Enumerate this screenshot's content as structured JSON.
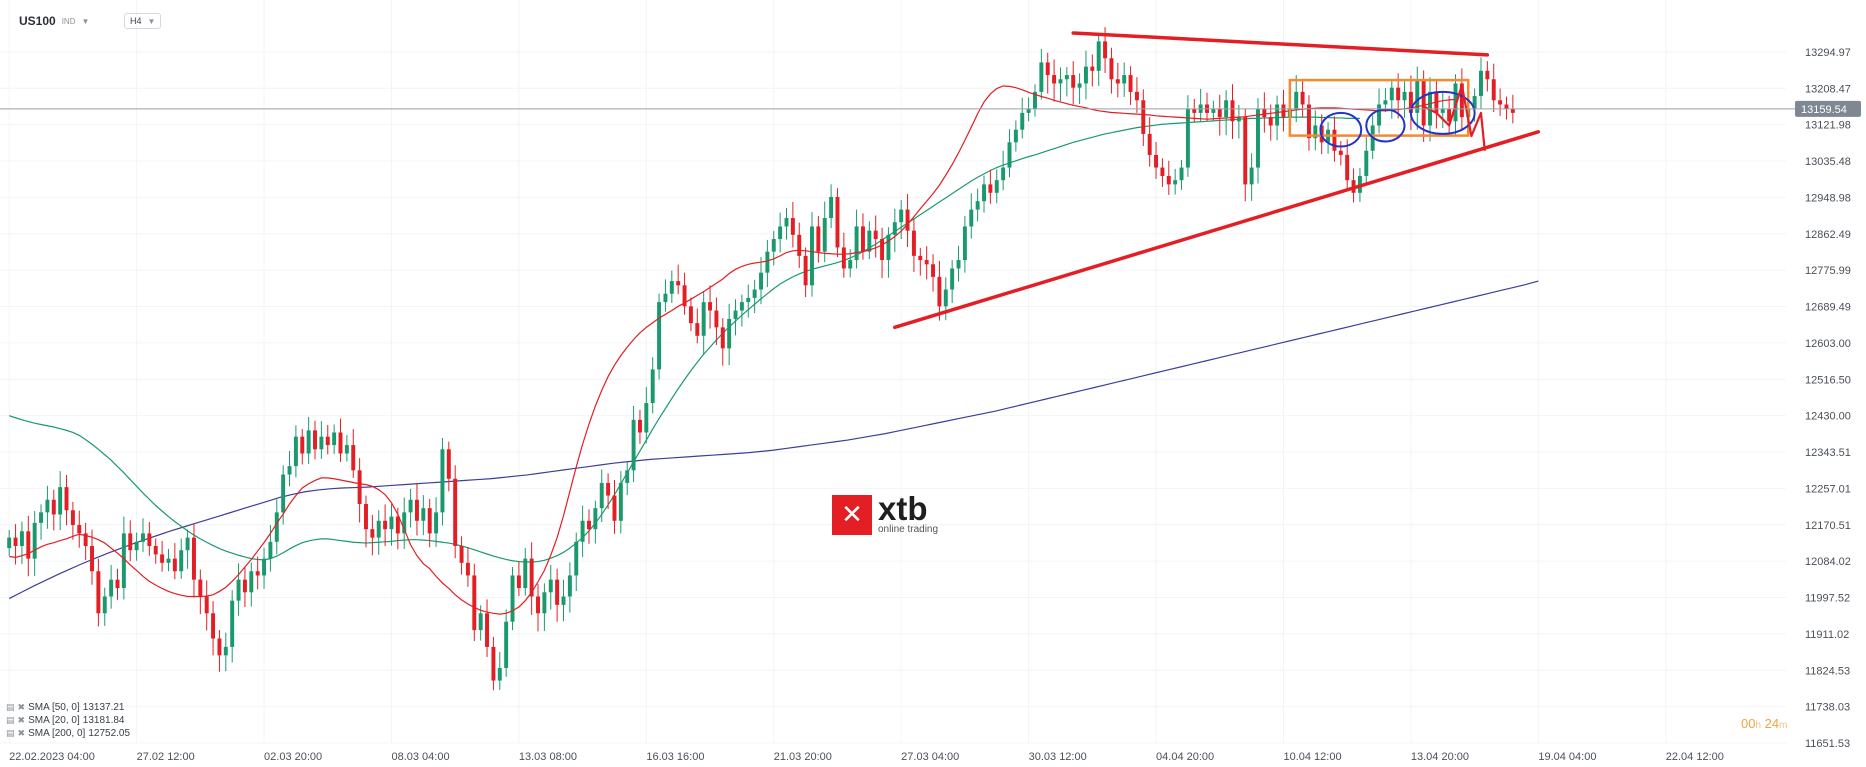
{
  "header": {
    "symbol": "US100",
    "asset_class": "IND",
    "timeframe": "H4"
  },
  "logo": {
    "mark": "✕",
    "name": "xtb",
    "tagline": "online trading"
  },
  "legend": [
    {
      "label": "SMA [50, 0]",
      "value": "13137.21",
      "color": "#1a9a6c"
    },
    {
      "label": "SMA [20, 0]",
      "value": "13181.84",
      "color": "#e31e24"
    },
    {
      "label": "SMA [200, 0]",
      "value": "12752.05",
      "color": "#3b3f9a"
    }
  ],
  "timer": {
    "hours": "00",
    "h": "h",
    "minutes": "24",
    "m": "m"
  },
  "colors": {
    "up": "#1a9a6c",
    "down": "#e31e24",
    "sma50": "#1a9a6c",
    "sma20": "#e31e24",
    "sma200": "#3b3f9a",
    "trendline": "#e31e24",
    "box": "#f28a30",
    "circles": "#2233cc",
    "price_badge": "#7f8792"
  },
  "chart_data": {
    "type": "candlestick",
    "symbol": "US100",
    "timeframe": "H4",
    "ylim": [
      11651.53,
      13340
    ],
    "y_ticks": [
      13294.97,
      13208.47,
      13121.98,
      13035.48,
      12948.98,
      12862.49,
      12775.99,
      12689.49,
      12603.0,
      12516.5,
      12430.0,
      12343.51,
      12257.01,
      12170.51,
      12084.02,
      11997.52,
      11911.02,
      11824.53,
      11738.03,
      11651.53
    ],
    "x_ticks": [
      "22.02.2023 04:00",
      "27.02 12:00",
      "02.03 20:00",
      "08.03 04:00",
      "13.03 08:00",
      "16.03 16:00",
      "21.03 20:00",
      "27.03 04:00",
      "30.03 12:00",
      "04.04 20:00",
      "10.04 12:00",
      "13.04 20:00",
      "19.04 04:00",
      "22.04 12:00"
    ],
    "x_tick_index": [
      0,
      20,
      40,
      60,
      80,
      100,
      120,
      140,
      160,
      180,
      200,
      220,
      240,
      260
    ],
    "n_slots": 280,
    "current_price": "13159.54",
    "current_price_value": 13159.54,
    "closes": [
      12140,
      12120,
      12155,
      12090,
      12175,
      12200,
      12230,
      12195,
      12260,
      12205,
      12170,
      12150,
      12120,
      12060,
      11960,
      12000,
      12040,
      12020,
      12150,
      12110,
      12130,
      12150,
      12120,
      12100,
      12080,
      12090,
      12060,
      12110,
      12140,
      12040,
      12000,
      11960,
      11900,
      11860,
      11880,
      11990,
      12040,
      12010,
      12060,
      12050,
      12090,
      12130,
      12200,
      12290,
      12310,
      12380,
      12340,
      12395,
      12350,
      12380,
      12360,
      12390,
      12340,
      12360,
      12300,
      12220,
      12160,
      12140,
      12180,
      12160,
      12190,
      12150,
      12200,
      12230,
      12180,
      12210,
      12150,
      12200,
      12350,
      12280,
      12120,
      12080,
      12050,
      11920,
      11960,
      11880,
      11800,
      11830,
      11940,
      12050,
      12020,
      12090,
      12000,
      11960,
      12010,
      12040,
      11980,
      12000,
      12050,
      12130,
      12180,
      12160,
      12210,
      12270,
      12240,
      12180,
      12270,
      12300,
      12420,
      12390,
      12460,
      12540,
      12700,
      12720,
      12750,
      12740,
      12690,
      12650,
      12620,
      12700,
      12680,
      12640,
      12590,
      12660,
      12680,
      12700,
      12710,
      12730,
      12770,
      12820,
      12850,
      12880,
      12900,
      12860,
      12810,
      12740,
      12880,
      12820,
      12900,
      12950,
      12830,
      12780,
      12800,
      12880,
      12820,
      12870,
      12850,
      12800,
      12860,
      12890,
      12920,
      12870,
      12810,
      12800,
      12790,
      12760,
      12690,
      12730,
      12780,
      12800,
      12880,
      12920,
      12940,
      12980,
      12960,
      12990,
      13020,
      13080,
      13110,
      13150,
      13160,
      13200,
      13270,
      13240,
      13220,
      13230,
      13240,
      13210,
      13220,
      13260,
      13250,
      13320,
      13280,
      13230,
      13220,
      13240,
      13200,
      13180,
      13100,
      13050,
      13020,
      13000,
      12980,
      12990,
      13020,
      13160,
      13150,
      13170,
      13150,
      13160,
      13140,
      13180,
      13130,
      13140,
      12980,
      13020,
      13160,
      13140,
      13120,
      13170,
      13140,
      13160,
      13200,
      13170,
      13090,
      13120,
      13080,
      13110,
      13060,
      13050,
      12990,
      12960,
      13000,
      13060,
      13120,
      13170,
      13180,
      13210,
      13180,
      13200,
      13150,
      13230,
      13120,
      13200,
      13150,
      13160,
      13130,
      13220,
      13140,
      13160,
      13190,
      13250,
      13230,
      13180,
      13170,
      13160,
      13150
    ],
    "sma_20": [
      12095,
      12093,
      12097,
      12102,
      12110,
      12118,
      12124,
      12128,
      12133,
      12137,
      12143,
      12148,
      12145,
      12141,
      12135,
      12127,
      12115,
      12103,
      12090,
      12075,
      12062,
      12048,
      12036,
      12027,
      12019,
      12012,
      12007,
      12003,
      12000,
      12000,
      12000,
      12001,
      12004,
      12012,
      12022,
      12036,
      12052,
      12070,
      12088,
      12108,
      12128,
      12150,
      12174,
      12196,
      12220,
      12240,
      12258,
      12268,
      12276,
      12282,
      12282,
      12280,
      12277,
      12274,
      12271,
      12268,
      12266,
      12262,
      12254,
      12242,
      12223,
      12195,
      12160,
      12123,
      12097,
      12078,
      12066,
      12048,
      12032,
      12019,
      12004,
      11992,
      11982,
      11974,
      11967,
      11963,
      11960,
      11958,
      11960,
      11966,
      11975,
      11990,
      12010,
      12035,
      12062,
      12098,
      12140,
      12192,
      12250,
      12308,
      12362,
      12410,
      12453,
      12490,
      12523,
      12550,
      12573,
      12593,
      12611,
      12627,
      12640,
      12651,
      12662,
      12671,
      12680,
      12690,
      12698,
      12707,
      12716,
      12725,
      12735,
      12745,
      12755,
      12768,
      12778,
      12785,
      12790,
      12793,
      12795,
      12798,
      12803,
      12810,
      12818,
      12822,
      12823,
      12822,
      12820,
      12818,
      12816,
      12815,
      12814,
      12814,
      12815,
      12818,
      12820,
      12824,
      12829,
      12836,
      12845,
      12856,
      12869,
      12885,
      12903,
      12922,
      12940,
      12958,
      12978,
      13002,
      13027,
      13055,
      13085,
      13116,
      13148,
      13176,
      13195,
      13208,
      13214,
      13213,
      13210,
      13205,
      13199,
      13194,
      13189,
      13185,
      13180,
      13176,
      13172,
      13168,
      13165,
      13162,
      13158,
      13155,
      13153,
      13151,
      13150,
      13149,
      13148,
      13147,
      13146,
      13145,
      13143,
      13142,
      13141,
      13140,
      13139,
      13138,
      13137,
      13136,
      13135,
      13136,
      13137,
      13138,
      13139,
      13140,
      13141,
      13143,
      13145,
      13147,
      13149,
      13151,
      13153,
      13155,
      13157,
      13159,
      13160,
      13161,
      13162,
      13162,
      13162,
      13161,
      13160,
      13159,
      13158,
      13157,
      13156,
      13155,
      13155,
      13156,
      13158,
      13160,
      13162,
      13165,
      13168,
      13172,
      13176,
      13179,
      13181,
      13182
    ],
    "sma_50": [
      12430,
      12425,
      12420,
      12416,
      12412,
      12409,
      12406,
      12403,
      12399,
      12395,
      12390,
      12383,
      12373,
      12362,
      12350,
      12337,
      12324,
      12309,
      12294,
      12278,
      12262,
      12246,
      12231,
      12216,
      12203,
      12190,
      12178,
      12167,
      12156,
      12146,
      12137,
      12129,
      12121,
      12114,
      12108,
      12103,
      12098,
      12094,
      12090,
      12088,
      12087,
      12090,
      12096,
      12104,
      12113,
      12121,
      12128,
      12132,
      12135,
      12137,
      12137,
      12135,
      12133,
      12131,
      12129,
      12128,
      12127,
      12128,
      12129,
      12130,
      12131,
      12133,
      12134,
      12135,
      12135,
      12134,
      12133,
      12131,
      12129,
      12127,
      12124,
      12120,
      12116,
      12111,
      12106,
      12101,
      12096,
      12092,
      12088,
      12085,
      12083,
      12082,
      12082,
      12083,
      12086,
      12091,
      12097,
      12105,
      12115,
      12127,
      12140,
      12156,
      12174,
      12195,
      12218,
      12242,
      12268,
      12294,
      12320,
      12346,
      12372,
      12398,
      12423,
      12447,
      12471,
      12494,
      12516,
      12537,
      12557,
      12576,
      12593,
      12610,
      12626,
      12641,
      12655,
      12669,
      12682,
      12695,
      12708,
      12720,
      12732,
      12743,
      12752,
      12760,
      12767,
      12773,
      12778,
      12782,
      12786,
      12790,
      12794,
      12799,
      12805,
      12812,
      12820,
      12829,
      12838,
      12848,
      12858,
      12868,
      12878,
      12888,
      12898,
      12908,
      12918,
      12928,
      12938,
      12948,
      12958,
      12968,
      12978,
      12988,
      12997,
      13005,
      13013,
      13020,
      13026,
      13031,
      13036,
      13041,
      13046,
      13050,
      13055,
      13060,
      13065,
      13070,
      13075,
      13080,
      13084,
      13088,
      13092,
      13096,
      13100,
      13103,
      13106,
      13109,
      13112,
      13115,
      13117,
      13119,
      13121,
      13123,
      13124,
      13125,
      13126,
      13127,
      13128,
      13129,
      13130,
      13131,
      13132,
      13133,
      13134,
      13135,
      13136,
      13137,
      13137,
      13138,
      13138,
      13139,
      13139,
      13140,
      13140,
      13140,
      13140,
      13140,
      13139,
      13139,
      13138,
      13138,
      13137,
      13137,
      13137
    ],
    "sma_200": [
      11995,
      12010,
      12025,
      12039,
      12053,
      12066,
      12079,
      12091,
      12103,
      12114,
      12125,
      12135,
      12145,
      12155,
      12164,
      12173,
      12182,
      12191,
      12200,
      12209,
      12218,
      12227,
      12236,
      12243,
      12249,
      12253,
      12256,
      12258,
      12259,
      12260,
      12262,
      12264,
      12266,
      12268,
      12270,
      12272,
      12274,
      12276,
      12278,
      12280,
      12283,
      12286,
      12289,
      12293,
      12297,
      12301,
      12305,
      12309,
      12313,
      12317,
      12320,
      12323,
      12326,
      12328,
      12330,
      12332,
      12334,
      12336,
      12338,
      12340,
      12342,
      12345,
      12348,
      12352,
      12356,
      12360,
      12364,
      12368,
      12372,
      12377,
      12382,
      12387,
      12393,
      12399,
      12405,
      12411,
      12417,
      12423,
      12429,
      12435,
      12441,
      12448,
      12455,
      12462,
      12469,
      12476,
      12483,
      12490,
      12497,
      12504,
      12511,
      12518,
      12525,
      12532,
      12539,
      12546,
      12553,
      12560,
      12567,
      12574,
      12581,
      12588,
      12595,
      12602,
      12609,
      12616,
      12623,
      12630,
      12637,
      12644,
      12651,
      12658,
      12665,
      12672,
      12679,
      12686,
      12693,
      12700,
      12707,
      12714,
      12721,
      12728,
      12735,
      12742,
      12750
    ],
    "trendlines": [
      {
        "from": {
          "i": 167,
          "y": 13340
        },
        "to": {
          "i": 232,
          "y": 13288
        }
      },
      {
        "from": {
          "i": 139,
          "y": 12640
        },
        "to": {
          "i": 240,
          "y": 13105
        }
      }
    ],
    "range_box": {
      "i0": 201,
      "i1": 229,
      "y_top": 13228,
      "y_bottom": 13096
    },
    "circles": [
      {
        "i": 209,
        "y": 13110,
        "ri": 3.2,
        "ry": 40
      },
      {
        "i": 216,
        "y": 13120,
        "ri": 3.0,
        "ry": 38
      },
      {
        "i": 225,
        "y": 13150,
        "ri": 5.0,
        "ry": 50
      }
    ],
    "projection": [
      {
        "i": 222,
        "y": 13165
      },
      {
        "i": 224,
        "y": 13150
      },
      {
        "i": 226,
        "y": 13120
      },
      {
        "i": 228,
        "y": 13215
      },
      {
        "i": 229.5,
        "y": 13095
      },
      {
        "i": 231,
        "y": 13150
      },
      {
        "i": 231.6,
        "y": 13060
      }
    ]
  }
}
